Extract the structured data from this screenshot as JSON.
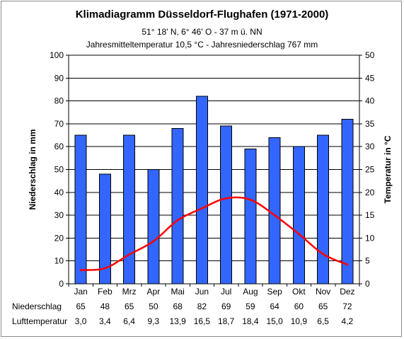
{
  "chart_data": {
    "type": "bar",
    "title": "Klimadiagramm Düsseldorf-Flughafen (1971-2000)",
    "subtitle1": "51° 18' N, 6° 46' O - 37 m ü. NN",
    "subtitle2": "Jahresmitteltemperatur 10,5 °C - Jahresniederschlag 767 mm",
    "ylabel_left": "Niederschlag in mm",
    "ylabel_right": "Temperatur in °C",
    "categories": [
      "Jan",
      "Feb",
      "Mrz",
      "Apr",
      "Mai",
      "Jun",
      "Jul",
      "Aug",
      "Sep",
      "Okt",
      "Nov",
      "Dez"
    ],
    "ylim_left": [
      0,
      100
    ],
    "yticks_left": [
      0,
      10,
      20,
      30,
      40,
      50,
      60,
      70,
      80,
      90,
      100
    ],
    "ylim_right": [
      0,
      50
    ],
    "yticks_right": [
      0,
      5,
      10,
      15,
      20,
      25,
      30,
      35,
      40,
      45,
      50
    ],
    "series": [
      {
        "name": "Niederschlag",
        "type": "bar",
        "axis": "left",
        "color": "#3366ff",
        "values": [
          65,
          48,
          65,
          50,
          68,
          82,
          69,
          59,
          64,
          60,
          65,
          72
        ],
        "labels": [
          "65",
          "48",
          "65",
          "50",
          "68",
          "82",
          "69",
          "59",
          "64",
          "60",
          "65",
          "72"
        ]
      },
      {
        "name": "Lufttemperatur",
        "type": "line",
        "axis": "right",
        "color": "#ff0000",
        "values": [
          3.0,
          3.4,
          6.4,
          9.3,
          13.9,
          16.5,
          18.7,
          18.4,
          15.0,
          10.9,
          6.5,
          4.2
        ],
        "labels": [
          "3,0",
          "3,4",
          "6,4",
          "9,3",
          "13,9",
          "16,5",
          "18,7",
          "18,4",
          "15,0",
          "10,9",
          "6,5",
          "4,2"
        ]
      }
    ],
    "grid": true,
    "legend": "none"
  }
}
